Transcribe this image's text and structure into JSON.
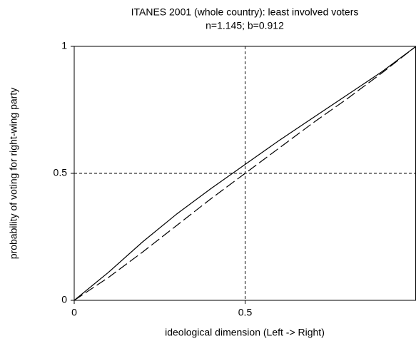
{
  "chart_data": {
    "type": "line",
    "title": "ITANES 2001 (whole country): least involved voters",
    "subtitle": "n=1.145; b=0.912",
    "x_label": "ideological dimension (Left -> Right)",
    "y_label": "probability of voting for right-wing party",
    "x": [
      0,
      0.1,
      0.2,
      0.3,
      0.4,
      0.5,
      0.6,
      0.7,
      0.8,
      0.9,
      1
    ],
    "series": [
      {
        "color": "#000000",
        "dash": "solid",
        "values": [
          0,
          0.11,
          0.23,
          0.34,
          0.44,
          0.535,
          0.63,
          0.72,
          0.81,
          0.9,
          1
        ]
      },
      {
        "color": "#000000",
        "dash": "dashed",
        "values": [
          0,
          0.09,
          0.19,
          0.295,
          0.4,
          0.5,
          0.6,
          0.7,
          0.795,
          0.895,
          1
        ]
      }
    ],
    "reference_lines": {
      "x": 0.5,
      "y": 0.5
    },
    "xlim": [
      0,
      1
    ],
    "ylim": [
      0,
      1
    ],
    "xticks": [
      0,
      0.5
    ],
    "yticks": [
      0,
      0.5,
      1
    ]
  }
}
